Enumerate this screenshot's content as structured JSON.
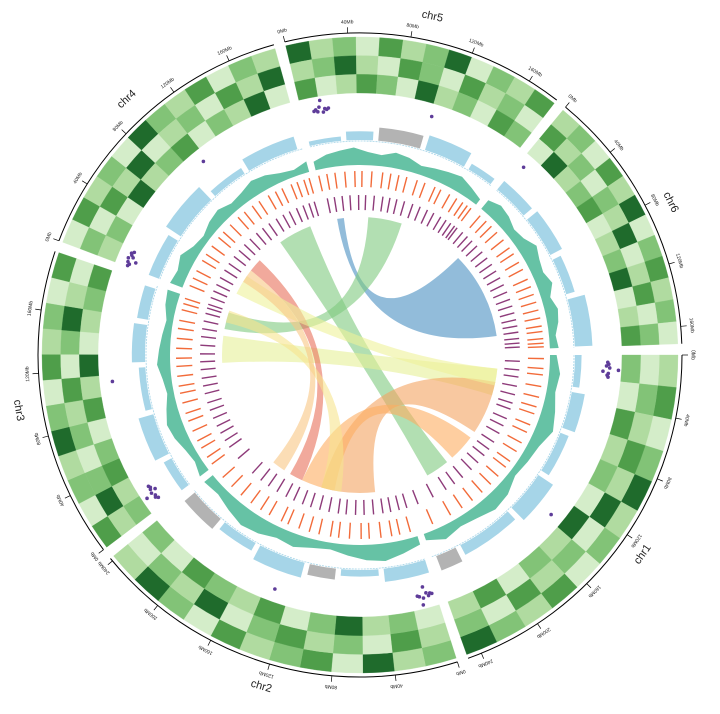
{
  "chart_data": {
    "type": "circos",
    "track_ylim": [
      0,
      1
    ],
    "heatmap_colors": [
      "#f2faed",
      "#d4edc9",
      "#b0dba0",
      "#82c377",
      "#4f9e4a",
      "#1f6b2c"
    ],
    "scatter_color": "#5e3c99",
    "bar_colors": [
      "#a6d5e8",
      "#b3b3b3"
    ],
    "area_color": "#66c2a5",
    "tick_track_colors": [
      "#f26b3a",
      "#8e3b7a"
    ],
    "link_colors": [
      "#4a90c2",
      "#7fc97f",
      "#7fc97f",
      "#e6f098",
      "#f4a460",
      "#fdae61",
      "#e8705a",
      "#f6e58d",
      "#eef29a",
      "#f9c784"
    ],
    "chromosomes": [
      {
        "name": "chr1",
        "length": 249,
        "ticks": [
          {
            "value": 0,
            "label": "0Mb"
          },
          {
            "value": 40,
            "label": "40Mb"
          },
          {
            "value": 80,
            "label": "80Mb"
          },
          {
            "value": 120,
            "label": "120Mb"
          },
          {
            "value": 160,
            "label": "160Mb"
          },
          {
            "value": 200,
            "label": "200Mb"
          },
          {
            "value": 240,
            "label": "240Mb"
          }
        ],
        "heatmap": [
          [
            2,
            4,
            1,
            3,
            5,
            2,
            3,
            1,
            4,
            2,
            3,
            5
          ],
          [
            1,
            3,
            2,
            4,
            2,
            5,
            1,
            3,
            2,
            4,
            1,
            3
          ],
          [
            3,
            1,
            4,
            2,
            3,
            1,
            5,
            2,
            3,
            1,
            4,
            2
          ]
        ],
        "scatter": {
          "pos": [
            6,
            7.5,
            9,
            10.5,
            12,
            13.5,
            15,
            16.5,
            18,
            141
          ],
          "values": [
            0.45,
            0.5,
            0.4,
            0.55,
            0.95,
            0.25,
            0.5,
            0.45,
            0.5,
            0.5
          ]
        },
        "bars": [
          [
            0,
            30,
            0.3,
            0
          ],
          [
            35,
            70,
            0.6,
            0
          ],
          [
            75,
            115,
            0.4,
            0
          ],
          [
            120,
            160,
            0.8,
            0
          ],
          [
            165,
            220,
            0.5,
            0
          ],
          [
            225,
            245,
            0.7,
            1
          ]
        ],
        "area": [
          0.3,
          0.5,
          0.4,
          0.6,
          0.8,
          0.5,
          0.4,
          0.3,
          0.6,
          0.7,
          0.5,
          0.4,
          0.6,
          0.3
        ],
        "orange": [
          4,
          15,
          22,
          35,
          47,
          58,
          66,
          79,
          88,
          101,
          112,
          125,
          133,
          146,
          158,
          171,
          185,
          199,
          214,
          236
        ],
        "purple": [
          8,
          19,
          28,
          40,
          51,
          62,
          70,
          83,
          93,
          104,
          117,
          128,
          138,
          150,
          162,
          177,
          190,
          203,
          222,
          243
        ]
      },
      {
        "name": "chr2",
        "length": 242,
        "ticks": [
          {
            "value": 0,
            "label": "0Mb"
          },
          {
            "value": 40,
            "label": "40Mb"
          },
          {
            "value": 80,
            "label": "80Mb"
          },
          {
            "value": 120,
            "label": "120Mb"
          },
          {
            "value": 160,
            "label": "160Mb"
          },
          {
            "value": 200,
            "label": "200Mb"
          },
          {
            "value": 240,
            "label": "240Mb"
          }
        ],
        "heatmap": [
          [
            3,
            2,
            5,
            1,
            4,
            3,
            2,
            4,
            1,
            3,
            5,
            2
          ],
          [
            2,
            4,
            1,
            3,
            2,
            4,
            3,
            1,
            5,
            2,
            3,
            1
          ],
          [
            1,
            3,
            2,
            5,
            3,
            1,
            4,
            2,
            3,
            4,
            1,
            3
          ]
        ],
        "scatter": {
          "pos": [
            3,
            4.5,
            6,
            7.5,
            9,
            10.5,
            12,
            13.5,
            15,
            133
          ],
          "values": [
            0.5,
            0.45,
            0.55,
            0.4,
            0.1,
            0.6,
            0.9,
            0.5,
            0.45,
            0.5
          ]
        },
        "bars": [
          [
            0,
            40,
            0.6,
            0
          ],
          [
            45,
            80,
            0.3,
            0
          ],
          [
            85,
            110,
            0.5,
            1
          ],
          [
            115,
            160,
            0.7,
            0
          ],
          [
            165,
            200,
            0.4,
            0
          ],
          [
            205,
            240,
            0.6,
            1
          ]
        ],
        "area": [
          0.4,
          0.6,
          0.8,
          0.7,
          0.5,
          0.3,
          0.4,
          0.6,
          0.5,
          0.7,
          0.8,
          0.6,
          0.4,
          0.5
        ],
        "orange": [
          6,
          18,
          27,
          39,
          52,
          61,
          74,
          86,
          95,
          108,
          119,
          131,
          144,
          152,
          167,
          178,
          191,
          205,
          219,
          233
        ],
        "purple": [
          2,
          12,
          23,
          33,
          45,
          57,
          68,
          80,
          90,
          102,
          114,
          126,
          137,
          149,
          160,
          173,
          186,
          198,
          212,
          238
        ]
      },
      {
        "name": "chr3",
        "length": 198,
        "ticks": [
          {
            "value": 0,
            "label": "0Mb"
          },
          {
            "value": 40,
            "label": "40Mb"
          },
          {
            "value": 80,
            "label": "80Mb"
          },
          {
            "value": 120,
            "label": "120Mb"
          },
          {
            "value": 160,
            "label": "160Mb"
          }
        ],
        "heatmap": [
          [
            4,
            1,
            3,
            2,
            5,
            3,
            1,
            4,
            2,
            3,
            1,
            4
          ],
          [
            2,
            5,
            3,
            1,
            3,
            2,
            4,
            1,
            3,
            5,
            2,
            1
          ],
          [
            3,
            2,
            4,
            3,
            1,
            4,
            2,
            5,
            1,
            2,
            3,
            4
          ]
        ],
        "scatter": {
          "pos": [
            7,
            8.5,
            10,
            11.5,
            13,
            14.5,
            16,
            17.5,
            19,
            110
          ],
          "values": [
            0.4,
            0.5,
            0.45,
            0.85,
            0.55,
            0.3,
            0.5,
            0.45,
            0.5,
            0.5
          ]
        },
        "bars": [
          [
            0,
            30,
            0.4,
            0
          ],
          [
            35,
            75,
            0.7,
            0
          ],
          [
            80,
            120,
            0.3,
            0
          ],
          [
            125,
            160,
            0.6,
            0
          ],
          [
            165,
            195,
            0.5,
            0
          ]
        ],
        "area": [
          0.5,
          0.3,
          0.4,
          0.6,
          0.7,
          0.5,
          0.3,
          0.4,
          0.6,
          0.5,
          0.4,
          0.3,
          0.5,
          0.6
        ],
        "orange": [
          3,
          12,
          24,
          33,
          45,
          57,
          66,
          78,
          89,
          97,
          108,
          119,
          128,
          139,
          150,
          161,
          170,
          182,
          189,
          195
        ],
        "purple": [
          7,
          17,
          28,
          38,
          49,
          60,
          70,
          82,
          92,
          102,
          113,
          123,
          133,
          144,
          155,
          165,
          175,
          185,
          192,
          197
        ]
      },
      {
        "name": "chr4",
        "length": 190,
        "ticks": [
          {
            "value": 0,
            "label": "0Mb"
          },
          {
            "value": 40,
            "label": "40Mb"
          },
          {
            "value": 80,
            "label": "80Mb"
          },
          {
            "value": 120,
            "label": "120Mb"
          },
          {
            "value": 160,
            "label": "160Mb"
          }
        ],
        "heatmap": [
          [
            1,
            4,
            2,
            3,
            1,
            5,
            3,
            2,
            4,
            1,
            3,
            2
          ],
          [
            3,
            1,
            4,
            2,
            5,
            1,
            2,
            3,
            1,
            4,
            2,
            5
          ],
          [
            2,
            3,
            1,
            5,
            2,
            3,
            4,
            1,
            3,
            2,
            5,
            1
          ]
        ],
        "scatter": {
          "pos": [
            1,
            2.5,
            4,
            5.5,
            7,
            8.5,
            10,
            11.5,
            13,
            107
          ],
          "values": [
            0.5,
            0.45,
            0.55,
            0.2,
            0.6,
            0.4,
            0.5,
            0.55,
            0.45,
            0.5
          ]
        },
        "bars": [
          [
            0,
            40,
            0.5,
            0
          ],
          [
            45,
            90,
            0.8,
            0
          ],
          [
            95,
            130,
            0.3,
            0
          ],
          [
            135,
            185,
            0.6,
            0
          ]
        ],
        "area": [
          0.6,
          0.5,
          0.7,
          0.4,
          0.3,
          0.5,
          0.6,
          0.4,
          0.5,
          0.7,
          0.6,
          0.4,
          0.3,
          0.5
        ],
        "orange": [
          5,
          14,
          23,
          36,
          44,
          55,
          67,
          75,
          86,
          98,
          107,
          118,
          127,
          139,
          148,
          156,
          167,
          174,
          182,
          188
        ],
        "purple": [
          1,
          10,
          19,
          29,
          40,
          50,
          61,
          71,
          81,
          91,
          102,
          112,
          122,
          133,
          143,
          152,
          162,
          171,
          179,
          186
        ]
      },
      {
        "name": "chr5",
        "length": 181,
        "ticks": [
          {
            "value": 0,
            "label": "0Mb"
          },
          {
            "value": 40,
            "label": "40Mb"
          },
          {
            "value": 80,
            "label": "80Mb"
          },
          {
            "value": 120,
            "label": "120Mb"
          },
          {
            "value": 160,
            "label": "160Mb"
          }
        ],
        "heatmap": [
          [
            5,
            2,
            3,
            1,
            4,
            2,
            3,
            5,
            1,
            3,
            2,
            4
          ],
          [
            2,
            3,
            5,
            2,
            1,
            4,
            3,
            1,
            4,
            2,
            3,
            1
          ],
          [
            4,
            1,
            2,
            4,
            3,
            1,
            5,
            2,
            3,
            1,
            4,
            3
          ]
        ],
        "scatter": {
          "pos": [
            10,
            11.5,
            13,
            14.5,
            16,
            17.5,
            19,
            20.5,
            22,
            107
          ],
          "values": [
            0.45,
            0.5,
            0.4,
            0.6,
            0.9,
            0.35,
            0.5,
            0.45,
            0.5,
            0.5
          ]
        },
        "bars": [
          [
            0,
            30,
            0.2,
            0
          ],
          [
            35,
            60,
            0.4,
            0
          ],
          [
            65,
            105,
            0.6,
            1
          ],
          [
            110,
            150,
            0.7,
            0
          ],
          [
            155,
            180,
            0.3,
            0
          ]
        ],
        "area": [
          0.4,
          0.6,
          0.7,
          0.8,
          0.6,
          0.5,
          0.7,
          0.6,
          0.4,
          0.5,
          0.6,
          0.7,
          0.5,
          0.3
        ],
        "orange": [
          2,
          11,
          20,
          31,
          42,
          50,
          61,
          73,
          82,
          91,
          100,
          112,
          121,
          133,
          140,
          151,
          160,
          168,
          174,
          179
        ],
        "purple": [
          6,
          15,
          25,
          35,
          46,
          55,
          66,
          77,
          86,
          95,
          105,
          116,
          126,
          136,
          145,
          155,
          163,
          170,
          176,
          180
        ]
      },
      {
        "name": "chr6",
        "length": 171,
        "ticks": [
          {
            "value": 0,
            "label": "0Mb"
          },
          {
            "value": 40,
            "label": "40Mb"
          },
          {
            "value": 80,
            "label": "80Mb"
          },
          {
            "value": 120,
            "label": "120Mb"
          },
          {
            "value": 160,
            "label": "160Mb"
          }
        ],
        "heatmap": [
          [
            2,
            3,
            1,
            4,
            2,
            5,
            1,
            3,
            4,
            2,
            3,
            1
          ],
          [
            4,
            2,
            3,
            1,
            3,
            2,
            5,
            1,
            2,
            4,
            1,
            3
          ],
          [
            1,
            5,
            2,
            3,
            4,
            1,
            2,
            3,
            5,
            1,
            2,
            4
          ]
        ],
        "scatter": {
          "pos": [
            5
          ],
          "values": [
            0.5
          ]
        },
        "bars": [
          [
            0,
            35,
            0.5,
            0
          ],
          [
            40,
            80,
            0.6,
            0
          ],
          [
            85,
            120,
            0.4,
            0
          ],
          [
            125,
            170,
            0.8,
            0
          ]
        ],
        "area": [
          0.5,
          0.7,
          0.6,
          0.4,
          0.5,
          0.8,
          0.6,
          0.5,
          0.7,
          0.4,
          0.6,
          0.5,
          0.3,
          0.4
        ],
        "orange": [
          4,
          13,
          21,
          30,
          41,
          52,
          60,
          71,
          80,
          92,
          101,
          110,
          119,
          128,
          137,
          146,
          152,
          160,
          165,
          169
        ],
        "purple": [
          1,
          9,
          17,
          26,
          36,
          46,
          56,
          66,
          76,
          86,
          96,
          106,
          115,
          124,
          133,
          141,
          149,
          157,
          163,
          168
        ]
      }
    ],
    "links": [
      [
        4,
        14,
        24,
        5,
        20,
        150
      ],
      [
        3,
        120,
        170,
        0,
        180,
        215
      ],
      [
        4,
        60,
        110,
        2,
        170,
        195
      ],
      [
        0,
        20,
        60,
        2,
        120,
        160
      ],
      [
        0,
        40,
        120,
        1,
        40,
        120
      ],
      [
        1,
        100,
        150,
        0,
        130,
        170
      ],
      [
        3,
        60,
        80,
        1,
        150,
        170
      ],
      [
        2,
        180,
        198,
        1,
        90,
        120
      ],
      [
        3,
        20,
        50,
        0,
        20,
        45
      ],
      [
        3,
        40,
        60,
        1,
        180,
        200
      ]
    ]
  }
}
